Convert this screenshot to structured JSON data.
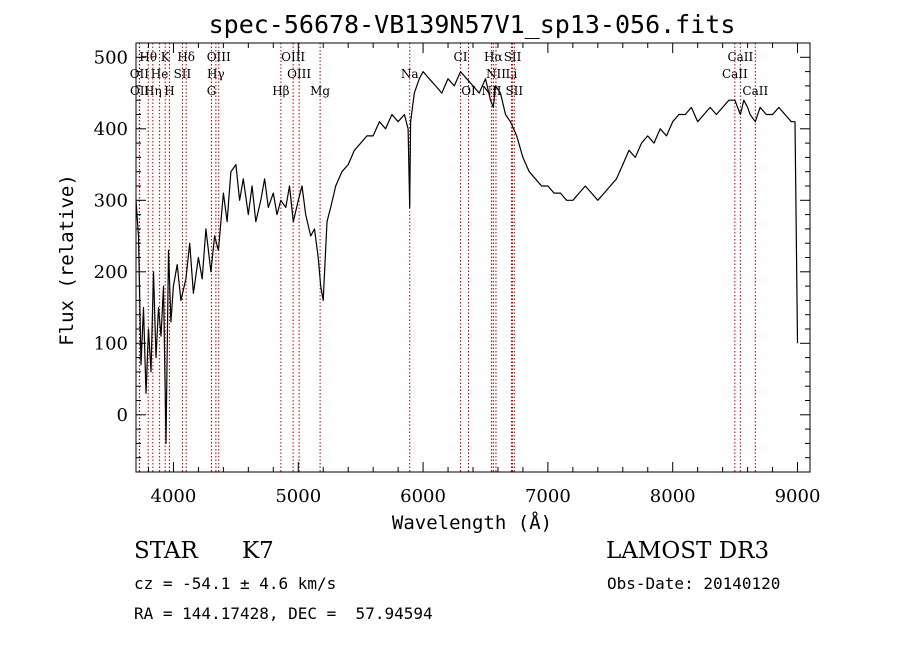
{
  "chart_data": {
    "type": "line",
    "title": "spec-56678-VB139N57V1_sp13-056.fits",
    "xlabel": "Wavelength (Å)",
    "ylabel": "Flux (relative)",
    "xlim": [
      3700,
      9100
    ],
    "ylim": [
      -80,
      520
    ],
    "xticks": [
      4000,
      5000,
      6000,
      7000,
      8000,
      9000
    ],
    "yticks": [
      0,
      100,
      200,
      300,
      400,
      500
    ],
    "grid": false,
    "series": [
      {
        "line_color": "#000000",
        "x": [
          3700,
          3720,
          3740,
          3760,
          3780,
          3800,
          3820,
          3840,
          3860,
          3880,
          3900,
          3920,
          3940,
          3960,
          3980,
          4000,
          4030,
          4060,
          4100,
          4130,
          4160,
          4200,
          4230,
          4260,
          4300,
          4330,
          4360,
          4400,
          4430,
          4460,
          4500,
          4530,
          4560,
          4600,
          4630,
          4660,
          4700,
          4730,
          4760,
          4800,
          4830,
          4860,
          4900,
          4930,
          4960,
          5000,
          5030,
          5060,
          5100,
          5130,
          5160,
          5180,
          5200,
          5230,
          5260,
          5300,
          5350,
          5400,
          5450,
          5500,
          5550,
          5600,
          5650,
          5700,
          5750,
          5800,
          5850,
          5880,
          5893,
          5900,
          5930,
          5970,
          6000,
          6050,
          6100,
          6150,
          6200,
          6250,
          6300,
          6350,
          6400,
          6450,
          6500,
          6540,
          6563,
          6580,
          6620,
          6660,
          6700,
          6750,
          6800,
          6850,
          6900,
          6950,
          7000,
          7050,
          7100,
          7150,
          7200,
          7250,
          7300,
          7350,
          7400,
          7450,
          7500,
          7550,
          7600,
          7650,
          7700,
          7750,
          7800,
          7850,
          7900,
          7950,
          8000,
          8050,
          8100,
          8150,
          8200,
          8250,
          8300,
          8350,
          8400,
          8450,
          8498,
          8520,
          8542,
          8570,
          8600,
          8620,
          8662,
          8700,
          8750,
          8800,
          8850,
          8900,
          8950,
          8980,
          9000
        ],
        "y": [
          300,
          250,
          70,
          150,
          30,
          120,
          60,
          200,
          80,
          150,
          110,
          180,
          -40,
          230,
          130,
          180,
          210,
          160,
          190,
          240,
          170,
          220,
          190,
          260,
          200,
          250,
          230,
          310,
          270,
          340,
          350,
          300,
          330,
          280,
          320,
          270,
          300,
          330,
          290,
          310,
          280,
          300,
          290,
          320,
          270,
          300,
          320,
          280,
          250,
          260,
          220,
          180,
          160,
          270,
          290,
          320,
          340,
          350,
          370,
          380,
          390,
          390,
          410,
          400,
          420,
          410,
          420,
          400,
          290,
          410,
          450,
          470,
          480,
          470,
          460,
          450,
          470,
          460,
          480,
          470,
          460,
          450,
          470,
          440,
          430,
          460,
          450,
          420,
          410,
          390,
          360,
          340,
          330,
          320,
          320,
          310,
          310,
          300,
          300,
          310,
          320,
          310,
          300,
          310,
          320,
          330,
          350,
          370,
          360,
          380,
          390,
          380,
          400,
          390,
          410,
          420,
          420,
          430,
          410,
          420,
          430,
          420,
          430,
          440,
          440,
          430,
          420,
          440,
          430,
          420,
          410,
          430,
          420,
          420,
          430,
          420,
          410,
          410,
          100
        ]
      }
    ],
    "line_labels": [
      {
        "text": "Hθ",
        "x": 3798,
        "row": 0
      },
      {
        "text": "K",
        "x": 3934,
        "row": 0
      },
      {
        "text": "Hδ",
        "x": 4102,
        "row": 0
      },
      {
        "text": "OIII",
        "x": 4363,
        "row": 0
      },
      {
        "text": "OIII",
        "x": 4959,
        "row": 0
      },
      {
        "text": "CI",
        "x": 6300,
        "row": 0
      },
      {
        "text": "Hα",
        "x": 6563,
        "row": 0
      },
      {
        "text": "SII",
        "x": 6717,
        "row": 0
      },
      {
        "text": "CaII",
        "x": 8542,
        "row": 0
      },
      {
        "text": "OII",
        "x": 3727,
        "row": 1
      },
      {
        "text": "He",
        "x": 3889,
        "row": 1
      },
      {
        "text": "SII",
        "x": 4072,
        "row": 1
      },
      {
        "text": "Hγ",
        "x": 4340,
        "row": 1
      },
      {
        "text": "OIII",
        "x": 5007,
        "row": 1
      },
      {
        "text": "Na",
        "x": 5893,
        "row": 1
      },
      {
        "text": "NII",
        "x": 6584,
        "row": 1
      },
      {
        "text": "Li",
        "x": 6708,
        "row": 1
      },
      {
        "text": "CaII",
        "x": 8498,
        "row": 1
      },
      {
        "text": "OII",
        "x": 3729,
        "row": 2
      },
      {
        "text": "Hη",
        "x": 3835,
        "row": 2
      },
      {
        "text": "H",
        "x": 3968,
        "row": 2
      },
      {
        "text": "G",
        "x": 4305,
        "row": 2
      },
      {
        "text": "Hβ",
        "x": 4861,
        "row": 2
      },
      {
        "text": "Mg",
        "x": 5175,
        "row": 2
      },
      {
        "text": "OI",
        "x": 6364,
        "row": 2
      },
      {
        "text": "NII",
        "x": 6548,
        "row": 2
      },
      {
        "text": "SII",
        "x": 6731,
        "row": 2
      },
      {
        "text": "CaII",
        "x": 8662,
        "row": 2
      }
    ],
    "line_marks": [
      3727,
      3729,
      3798,
      3835,
      3889,
      3934,
      3968,
      4072,
      4102,
      4305,
      4340,
      4363,
      4861,
      4959,
      5007,
      5175,
      5893,
      6300,
      6364,
      6548,
      6563,
      6584,
      6708,
      6717,
      6731,
      8498,
      8542,
      8662
    ],
    "line_mark_color": "#b40000"
  },
  "info": {
    "object_class": "STAR",
    "subclass": "K7",
    "survey": "LAMOST DR3",
    "cz": "cz = -54.1 ± 4.6 km/s",
    "obs_date": "Obs-Date: 20140120",
    "coords": "RA = 144.17428, DEC =  57.94594"
  }
}
